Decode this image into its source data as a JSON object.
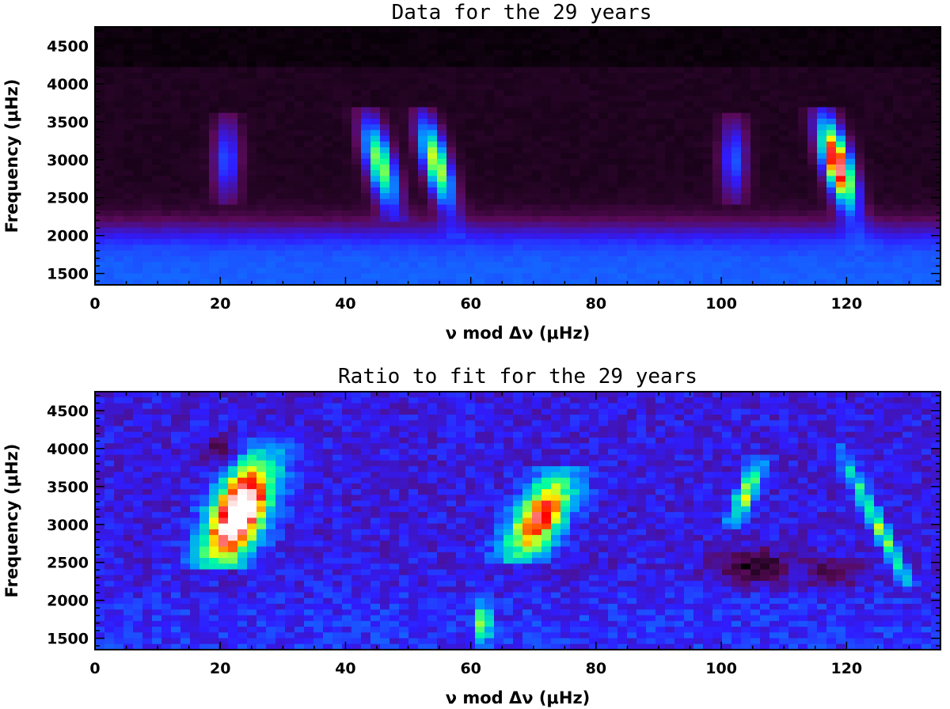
{
  "chart_data": [
    {
      "type": "heatmap",
      "title": "Data for the 29 years",
      "xlabel": "ν mod Δν (μHz)",
      "ylabel": "Frequency (μHz)",
      "xlim": [
        0,
        135
      ],
      "ylim": [
        1350,
        4750
      ],
      "xticks": [
        0,
        20,
        40,
        60,
        80,
        100,
        120
      ],
      "yticks": [
        1500,
        2000,
        2500,
        3000,
        3500,
        4000,
        4500
      ],
      "colormap": [
        "#000000",
        "#5a0a5a",
        "#2f1cff",
        "#00a0ff",
        "#00ffa0",
        "#ffff00",
        "#ff0000",
        "#ffffff"
      ],
      "background": {
        "high_freq_level": 0.05,
        "low_freq_level": 0.36,
        "transition_freq": 2100
      },
      "ridges": [
        {
          "x_center": 45.5,
          "freq_center": 2950,
          "peak": 0.62,
          "slope": -3.0,
          "x_width": 1.6,
          "freq_width": 420,
          "min_freq": 2300,
          "max_freq": 3600
        },
        {
          "x_center": 54.5,
          "freq_center": 2950,
          "peak": 0.66,
          "slope": -3.2,
          "x_width": 1.5,
          "freq_width": 420,
          "min_freq": 2050,
          "max_freq": 3600
        },
        {
          "x_center": 118.5,
          "freq_center": 2950,
          "peak": 0.92,
          "slope": -3.3,
          "x_width": 1.6,
          "freq_width": 420,
          "min_freq": 1900,
          "max_freq": 3600
        },
        {
          "x_center": 21.0,
          "freq_center": 3000,
          "peak": 0.3,
          "slope": 0,
          "x_width": 1.5,
          "freq_width": 400,
          "min_freq": 2500,
          "max_freq": 3500
        },
        {
          "x_center": 102.0,
          "freq_center": 3000,
          "peak": 0.3,
          "slope": 0,
          "x_width": 1.5,
          "freq_width": 400,
          "min_freq": 2500,
          "max_freq": 3500
        }
      ]
    },
    {
      "type": "heatmap",
      "title": "Ratio to fit for the 29 years",
      "xlabel": "ν mod Δν (μHz)",
      "ylabel": "Frequency (μHz)",
      "xlim": [
        0,
        135
      ],
      "ylim": [
        1350,
        4750
      ],
      "xticks": [
        0,
        20,
        40,
        60,
        80,
        100,
        120
      ],
      "yticks": [
        1500,
        2000,
        2500,
        3000,
        3500,
        4000,
        4500
      ],
      "colormap": [
        "#000000",
        "#5a0a5a",
        "#2f1cff",
        "#00a0ff",
        "#00ffa0",
        "#ffff00",
        "#ff0000",
        "#ffffff"
      ],
      "background": {
        "high_freq_level": 0.26,
        "low_freq_level": 0.3,
        "transition_freq": 2100
      },
      "ridges": [
        {
          "x_center": 23.0,
          "freq_center": 3150,
          "peak": 0.85,
          "slope": 4.5,
          "x_width": 3.2,
          "freq_width": 500,
          "min_freq": 2500,
          "max_freq": 4050
        },
        {
          "x_center": 71.0,
          "freq_center": 3100,
          "peak": 0.62,
          "slope": 5.5,
          "x_width": 3.0,
          "freq_width": 420,
          "min_freq": 2550,
          "max_freq": 3700
        },
        {
          "x_center": 104.0,
          "freq_center": 3400,
          "peak": 0.42,
          "slope": 5.0,
          "x_width": 1.2,
          "freq_width": 300,
          "min_freq": 3050,
          "max_freq": 3800
        },
        {
          "x_center": 62.0,
          "freq_center": 1700,
          "peak": 0.4,
          "slope": 0,
          "x_width": 0.8,
          "freq_width": 200,
          "min_freq": 1450,
          "max_freq": 1900
        },
        {
          "x_center": 125.0,
          "freq_center": 3000,
          "peak": 0.38,
          "slope": -6.0,
          "x_width": 0.9,
          "freq_width": 700,
          "min_freq": 2300,
          "max_freq": 4000
        }
      ],
      "dips": [
        {
          "x_center": 105.0,
          "freq_center": 2450,
          "depth": 0.22,
          "x_width": 4.0,
          "freq_width": 150
        },
        {
          "x_center": 118.0,
          "freq_center": 2350,
          "depth": 0.18,
          "x_width": 3.0,
          "freq_width": 120
        },
        {
          "x_center": 20.0,
          "freq_center": 3950,
          "depth": 0.15,
          "x_width": 2.0,
          "freq_width": 120
        }
      ]
    }
  ]
}
